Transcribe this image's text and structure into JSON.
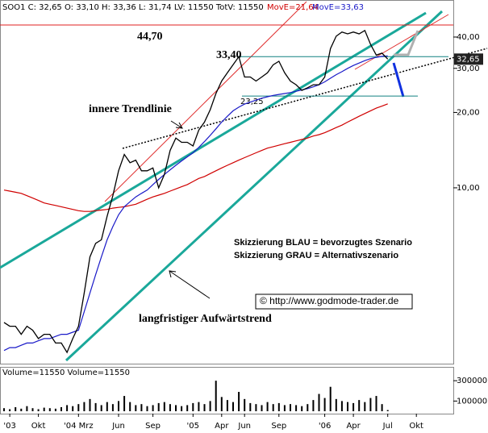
{
  "chart_data": {
    "type": "line",
    "title": "SOO1 C: 32,65 O: 33,10 H: 33,36 L: 31,74 LV: 11550 TotV: 11550",
    "color": "#000000",
    "log_scale": true,
    "ylim": [
      2,
      55
    ],
    "yticks": [
      {
        "value": 40,
        "label": "40,00"
      },
      {
        "value": 30,
        "label": "30,00"
      },
      {
        "value": 20,
        "label": "20,00"
      },
      {
        "value": 10,
        "label": "10,00"
      }
    ],
    "categories": [
      null,
      "'03",
      null,
      null,
      null,
      null,
      "Okt",
      null,
      null,
      null,
      null,
      null,
      null,
      "'04 Mrz",
      null,
      null,
      null,
      null,
      null,
      null,
      "Jun",
      null,
      null,
      null,
      null,
      null,
      "Sep",
      null,
      null,
      null,
      null,
      null,
      null,
      "'05",
      null,
      null,
      null,
      null,
      "Apr",
      null,
      null,
      null,
      "Jun",
      null,
      null,
      null,
      null,
      null,
      "Sep",
      null,
      null,
      null,
      null,
      null,
      null,
      null,
      "'06",
      null,
      null,
      null,
      null,
      "Apr",
      null,
      null,
      null,
      null,
      null,
      "Jul",
      null,
      null,
      null,
      null,
      "Okt",
      null,
      null,
      null,
      null,
      null,
      null
    ],
    "values": [
      2.9,
      2.8,
      2.8,
      2.6,
      2.8,
      2.7,
      2.5,
      2.6,
      2.6,
      2.4,
      2.4,
      2.2,
      2.5,
      2.8,
      3.8,
      5.3,
      6,
      6.2,
      7.7,
      9.3,
      11.7,
      13.6,
      12.6,
      12.9,
      11.7,
      11.7,
      12,
      10,
      11.3,
      14.1,
      15.8,
      15.2,
      15.2,
      14.7,
      17,
      18.3,
      20.5,
      23.8,
      26.7,
      28.8,
      31,
      33.4,
      27.7,
      27.7,
      26.7,
      27.7,
      28.8,
      31,
      32,
      28.8,
      26.7,
      25.8,
      24.5,
      25.1,
      25.8,
      25.8,
      27.7,
      36,
      40.3,
      41.9,
      41.2,
      41.9,
      41.2,
      42.5,
      37.4,
      33.9,
      34.5,
      32.65,
      null,
      null,
      null,
      null,
      null,
      null,
      null,
      null,
      null,
      null,
      null
    ],
    "overlays": [
      {
        "label": "MovE=21,64",
        "color": "#d00000",
        "values": [
          9.8,
          9.7,
          9.6,
          9.5,
          9.3,
          9.1,
          8.9,
          8.7,
          8.6,
          8.5,
          8.4,
          8.3,
          8.2,
          8.1,
          8.05,
          8.05,
          8.1,
          8.15,
          8.2,
          8.3,
          8.35,
          8.4,
          8.5,
          8.6,
          8.8,
          9,
          9.2,
          9.35,
          9.5,
          9.7,
          9.9,
          10.1,
          10.3,
          10.6,
          10.9,
          11.1,
          11.4,
          11.7,
          12,
          12.3,
          12.6,
          12.9,
          13.2,
          13.5,
          13.8,
          14.1,
          14.4,
          14.6,
          14.8,
          15,
          15.2,
          15.4,
          15.6,
          15.8,
          16.1,
          16.3,
          16.6,
          17,
          17.4,
          17.8,
          18.3,
          18.8,
          19.3,
          19.8,
          20.3,
          20.8,
          21.2,
          21.64,
          null,
          null,
          null,
          null,
          null,
          null,
          null,
          null,
          null,
          null,
          null
        ]
      },
      {
        "label": "MovE=33,63",
        "color": "#1a1ac8",
        "values": [
          2.24,
          2.3,
          2.3,
          2.35,
          2.4,
          2.4,
          2.45,
          2.5,
          2.5,
          2.55,
          2.6,
          2.6,
          2.65,
          2.7,
          3.2,
          3.8,
          4.5,
          5.3,
          6.2,
          7,
          7.8,
          8.4,
          8.8,
          9.2,
          9.5,
          9.8,
          10.3,
          10.8,
          11.3,
          11.8,
          12.3,
          12.8,
          13.3,
          13.8,
          14.5,
          15.3,
          16.2,
          17.2,
          18.3,
          19.3,
          20.3,
          21,
          21.6,
          22,
          22.4,
          22.8,
          23.1,
          23.4,
          23.6,
          23.8,
          24,
          24.3,
          24.6,
          24.9,
          25.3,
          25.8,
          26.5,
          27.4,
          28.3,
          29.1,
          30,
          30.8,
          31.5,
          32.2,
          32.8,
          33.2,
          33.5,
          33.63,
          null,
          null,
          null,
          null,
          null,
          null,
          null,
          null,
          null,
          null,
          null
        ]
      }
    ],
    "levels": [
      {
        "value": 44.7,
        "label": "44,70",
        "color": "#e02020"
      },
      {
        "value": 33.4,
        "label": "33,40",
        "color": "#108080"
      },
      {
        "value": 23.25,
        "label": "23,25",
        "color": "#108080"
      }
    ],
    "price_marker": {
      "value": 32.65,
      "label": "32,65"
    },
    "annotations": [
      "innere Trendlinie",
      "Skizzierung BLAU = bevorzugtes Szenario",
      "Skizzierung GRAU = Alternativszenario",
      "© http://www.godmode-trader.de",
      "langfristiger Aufwärtstrend"
    ],
    "volume": {
      "title": "Volume=11550 Volume=11550",
      "color": "#000000",
      "ylim": [
        0,
        420000
      ],
      "yticks": [
        300000,
        100000
      ],
      "values": [
        30000,
        20000,
        40000,
        25000,
        50000,
        30000,
        20000,
        35000,
        30000,
        25000,
        40000,
        60000,
        50000,
        70000,
        90000,
        120000,
        80000,
        60000,
        90000,
        70000,
        100000,
        150000,
        90000,
        60000,
        70000,
        50000,
        60000,
        80000,
        90000,
        70000,
        60000,
        50000,
        60000,
        80000,
        90000,
        70000,
        100000,
        300000,
        140000,
        110000,
        90000,
        190000,
        120000,
        80000,
        70000,
        60000,
        90000,
        70000,
        80000,
        60000,
        70000,
        60000,
        50000,
        70000,
        110000,
        170000,
        130000,
        240000,
        120000,
        100000,
        90000,
        80000,
        110000,
        90000,
        130000,
        150000,
        70000,
        11550,
        null,
        null,
        null,
        null,
        null,
        null,
        null,
        null,
        null,
        null,
        null
      ]
    }
  }
}
